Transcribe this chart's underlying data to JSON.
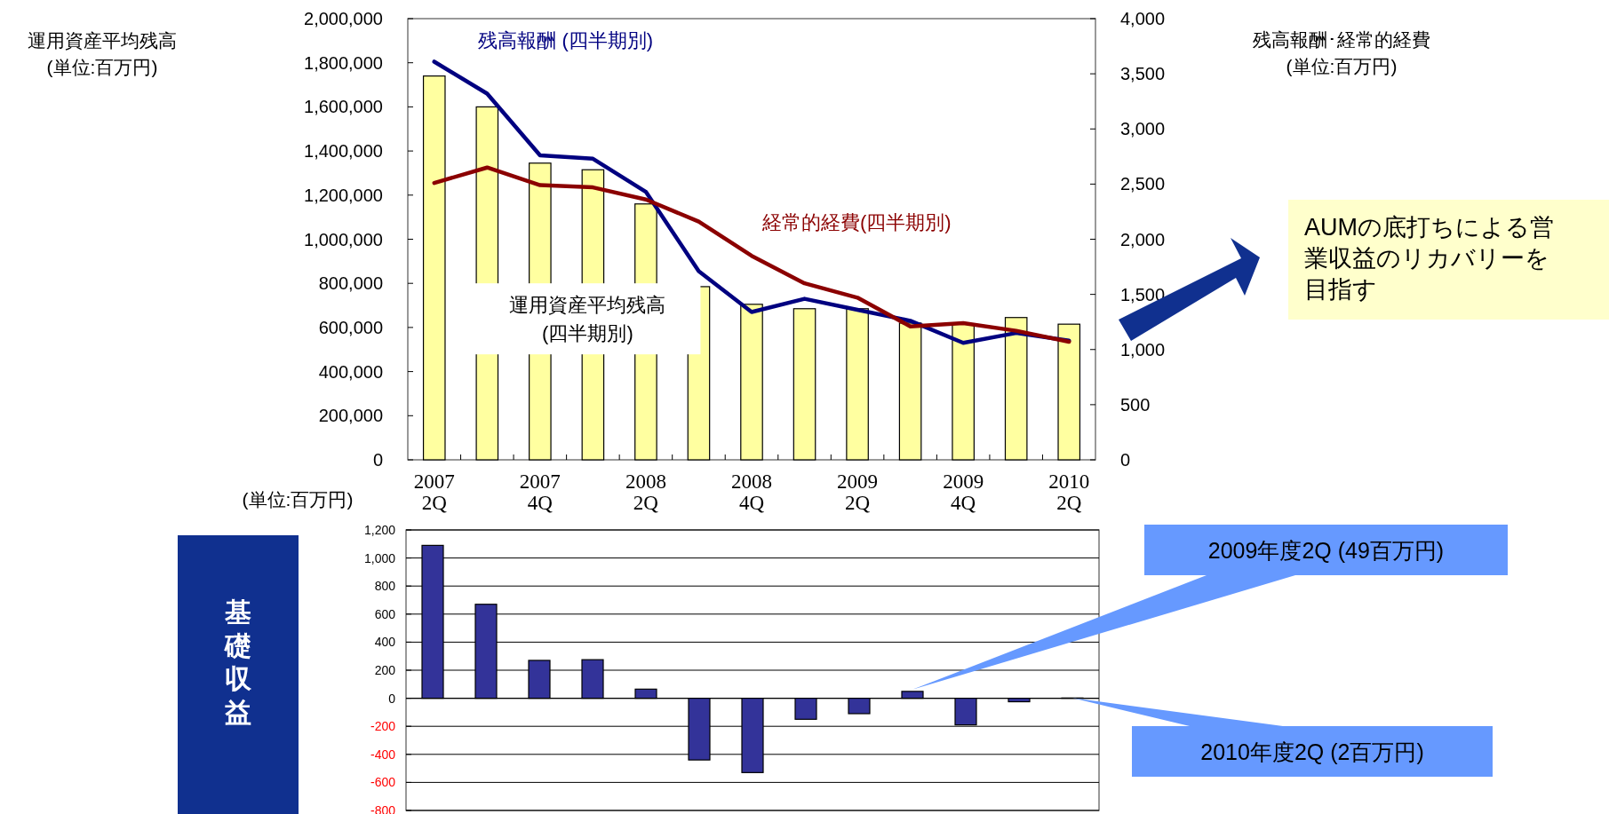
{
  "chart_data": [
    {
      "type": "bar",
      "legend": false,
      "ylabel": "運用資産平均残高\n(単位:百万円)",
      "y2label": "残高報酬･経常的経費\n(単位:百万円)",
      "categories": [
        "2007\n2Q",
        null,
        "2007\n4Q",
        null,
        "2008\n2Q",
        null,
        "2008\n4Q",
        null,
        "2009\n2Q",
        null,
        "2009\n4Q",
        null,
        "2010\n2Q"
      ],
      "series": [
        {
          "name": "運用資産平均残高\n(四半期別)",
          "color": "#ffffa0",
          "values": [
            1740000,
            1600000,
            1345000,
            1315000,
            1160000,
            785000,
            705000,
            685000,
            685000,
            620000,
            615000,
            645000,
            615000
          ]
        },
        {
          "name": "残高報酬 (四半期別)",
          "type": "line",
          "axis": "y2",
          "color": "#000080",
          "values": [
            3610,
            3320,
            2760,
            2730,
            2430,
            1710,
            1340,
            1460,
            1360,
            1260,
            1060,
            1150,
            1080
          ]
        },
        {
          "name": "経常的経費(四半期別)",
          "type": "line",
          "axis": "y2",
          "color": "#8b0000",
          "values": [
            2510,
            2650,
            2490,
            2470,
            2360,
            2160,
            1850,
            1600,
            1470,
            1210,
            1240,
            1170,
            1070
          ]
        }
      ],
      "ylim": [
        0,
        2000000
      ],
      "yticks": [
        0,
        {
          "value": 200000,
          "label": "200,000"
        },
        {
          "value": 400000,
          "label": "400,000"
        },
        {
          "value": 600000,
          "label": "600,000"
        },
        {
          "value": 800000,
          "label": "800,000"
        },
        {
          "value": 1000000,
          "label": "1,000,000"
        },
        {
          "value": 1200000,
          "label": "1,200,000"
        },
        {
          "value": 1400000,
          "label": "1,400,000"
        },
        {
          "value": 1600000,
          "label": "1,600,000"
        },
        {
          "value": 1800000,
          "label": "1,800,000"
        },
        {
          "value": 2000000,
          "label": "2,000,000"
        }
      ],
      "y2lim": [
        0,
        4000
      ],
      "y2ticks": [
        0,
        500,
        {
          "value": 1000,
          "label": "1,000"
        },
        {
          "value": 1500,
          "label": "1,500"
        },
        {
          "value": 2000,
          "label": "2,000"
        },
        {
          "value": 2500,
          "label": "2,500"
        },
        {
          "value": 3000,
          "label": "3,000"
        },
        {
          "value": 3500,
          "label": "3,500"
        },
        {
          "value": 4000,
          "label": "4,000"
        }
      ],
      "annotations": [
        "AUMの底打ちによる営業収益のリカバリーを目指す"
      ]
    },
    {
      "type": "bar",
      "title": "基礎収益",
      "ylabel": "(単位:百万円)",
      "grid": "y",
      "categories": [
        null,
        null,
        null,
        null,
        null,
        null,
        null,
        null,
        null,
        null,
        null,
        null,
        null
      ],
      "color": "#333399",
      "values": [
        1090,
        670,
        270,
        275,
        65,
        -440,
        -530,
        -150,
        -110,
        49,
        -190,
        -25,
        2
      ],
      "ylim": [
        -800,
        1200
      ],
      "yticks": [
        -800,
        -600,
        -400,
        -200,
        0,
        200,
        400,
        600,
        800,
        {
          "value": 1000,
          "label": "1,000"
        },
        {
          "value": 1200,
          "label": "1,200"
        }
      ],
      "annotations": [
        "2009年度2Q (49百万円)",
        "2010年度2Q (2百万円)"
      ]
    }
  ]
}
